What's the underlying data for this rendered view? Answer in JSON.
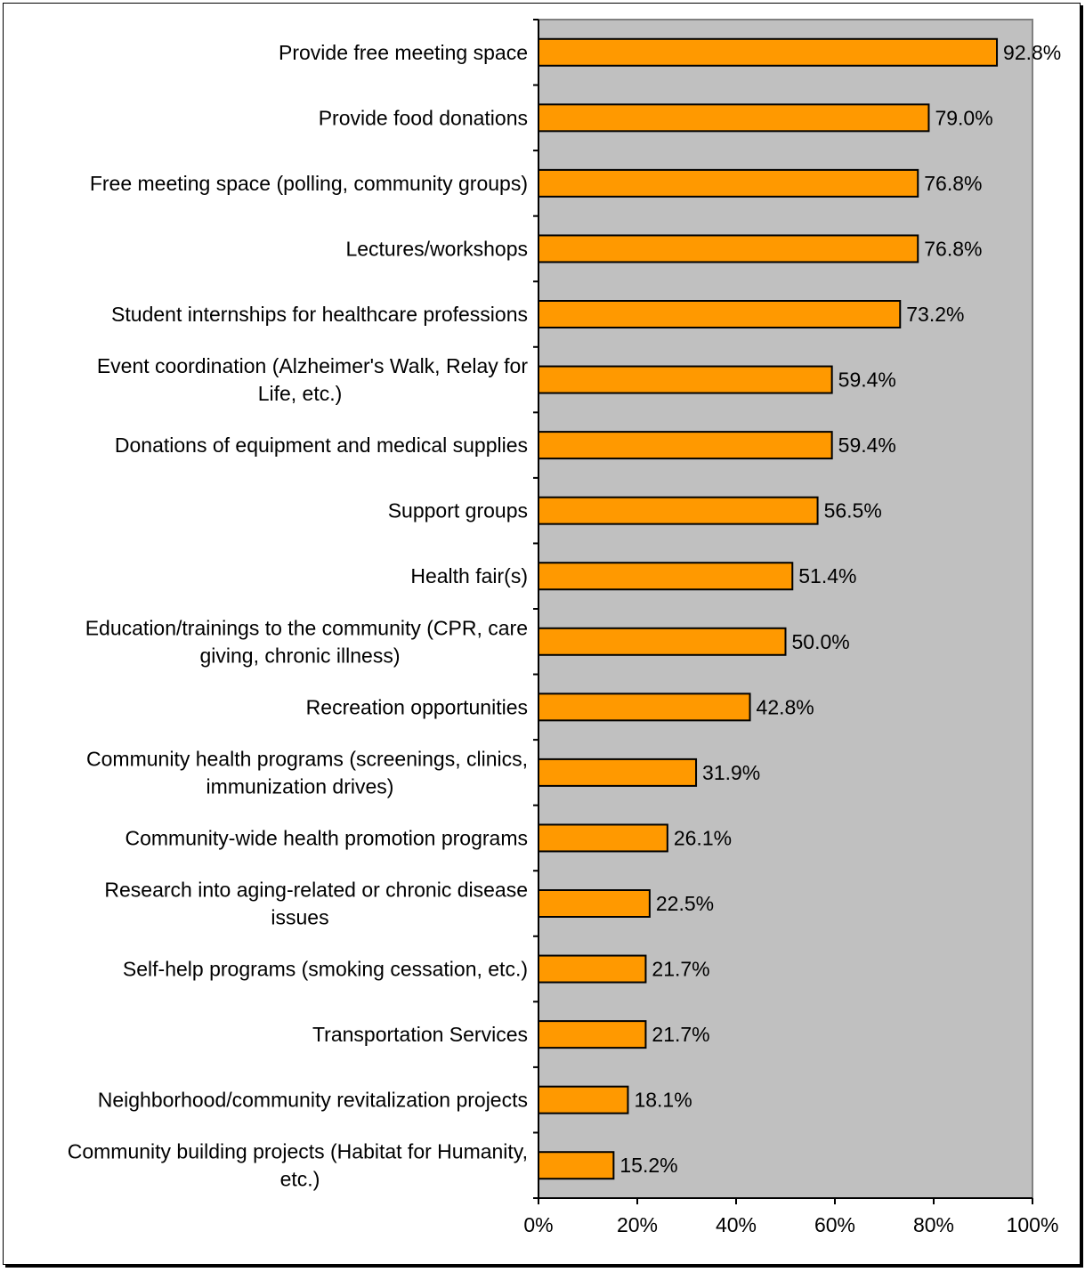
{
  "chart_data": {
    "type": "bar",
    "orientation": "horizontal",
    "categories": [
      "Provide free meeting space",
      "Provide food donations",
      "Free meeting space (polling, community groups)",
      "Lectures/workshops",
      "Student internships for healthcare professions",
      "Event coordination (Alzheimer's Walk, Relay for Life, etc.)",
      "Donations of equipment and medical supplies",
      "Support groups",
      "Health fair(s)",
      "Education/trainings to the community (CPR, care giving, chronic illness)",
      "Recreation opportunities",
      "Community health programs (screenings, clinics, immunization drives)",
      "Community-wide health promotion programs",
      "Research into aging-related or chronic disease issues",
      "Self-help programs (smoking cessation, etc.)",
      "Transportation Services",
      "Neighborhood/community revitalization projects",
      "Community building projects (Habitat for Humanity, etc.)"
    ],
    "category_lines": [
      [
        "Provide free meeting space"
      ],
      [
        "Provide food donations"
      ],
      [
        "Free meeting space (polling, community groups)"
      ],
      [
        "Lectures/workshops"
      ],
      [
        "Student internships for healthcare professions"
      ],
      [
        "Event coordination (Alzheimer's Walk, Relay for",
        "Life, etc.)"
      ],
      [
        "Donations of equipment and medical supplies"
      ],
      [
        "Support groups"
      ],
      [
        "Health fair(s)"
      ],
      [
        "Education/trainings to the community (CPR, care",
        "giving, chronic illness)"
      ],
      [
        "Recreation opportunities"
      ],
      [
        "Community health programs (screenings, clinics,",
        "immunization drives)"
      ],
      [
        "Community-wide health promotion programs"
      ],
      [
        "Research into aging-related or chronic disease",
        "issues"
      ],
      [
        "Self-help programs (smoking cessation, etc.)"
      ],
      [
        "Transportation Services"
      ],
      [
        "Neighborhood/community revitalization projects"
      ],
      [
        "Community building projects (Habitat for Humanity,",
        "etc.)"
      ]
    ],
    "values": [
      92.8,
      79.0,
      76.8,
      76.8,
      73.2,
      59.4,
      59.4,
      56.5,
      51.4,
      50.0,
      42.8,
      31.9,
      26.1,
      22.5,
      21.7,
      21.7,
      18.1,
      15.2
    ],
    "value_labels": [
      "92.8%",
      "79.0%",
      "76.8%",
      "76.8%",
      "73.2%",
      "59.4%",
      "59.4%",
      "56.5%",
      "51.4%",
      "50.0%",
      "42.8%",
      "31.9%",
      "26.1%",
      "22.5%",
      "21.7%",
      "21.7%",
      "18.1%",
      "15.2%"
    ],
    "xlim": [
      0,
      100
    ],
    "xticks": [
      0,
      20,
      40,
      60,
      80,
      100
    ],
    "xtick_labels": [
      "0%",
      "20%",
      "40%",
      "60%",
      "80%",
      "100%"
    ],
    "title": "",
    "xlabel": "",
    "ylabel": "",
    "grid": false,
    "legend": "none",
    "colors": {
      "bar_fill": "#FF9900",
      "bar_stroke": "#000000",
      "plot_background": "#C0C0C0",
      "plot_border": "#808080"
    }
  }
}
